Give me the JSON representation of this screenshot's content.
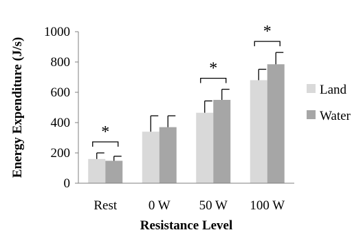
{
  "chart_data": {
    "type": "bar",
    "xlabel": "Resistance Level",
    "ylabel": "Energy Expenditure (J/s)",
    "categories": [
      "Rest",
      "0 W",
      "50 W",
      "100 W"
    ],
    "ylim": [
      0,
      1000
    ],
    "yticks": [
      0,
      200,
      400,
      600,
      800,
      1000
    ],
    "grid": false,
    "legend_position": "right",
    "series": [
      {
        "name": "Land",
        "color": "#d9d9d9",
        "values": [
          160,
          340,
          465,
          680
        ],
        "errors": [
          40,
          105,
          78,
          72
        ]
      },
      {
        "name": "Water",
        "color": "#a6a6a6",
        "values": [
          148,
          370,
          550,
          785
        ],
        "errors": [
          30,
          75,
          70,
          78
        ]
      }
    ],
    "significance": [
      {
        "category": "Rest",
        "label": "*"
      },
      {
        "category": "50 W",
        "label": "*"
      },
      {
        "category": "100 W",
        "label": "*"
      }
    ]
  }
}
